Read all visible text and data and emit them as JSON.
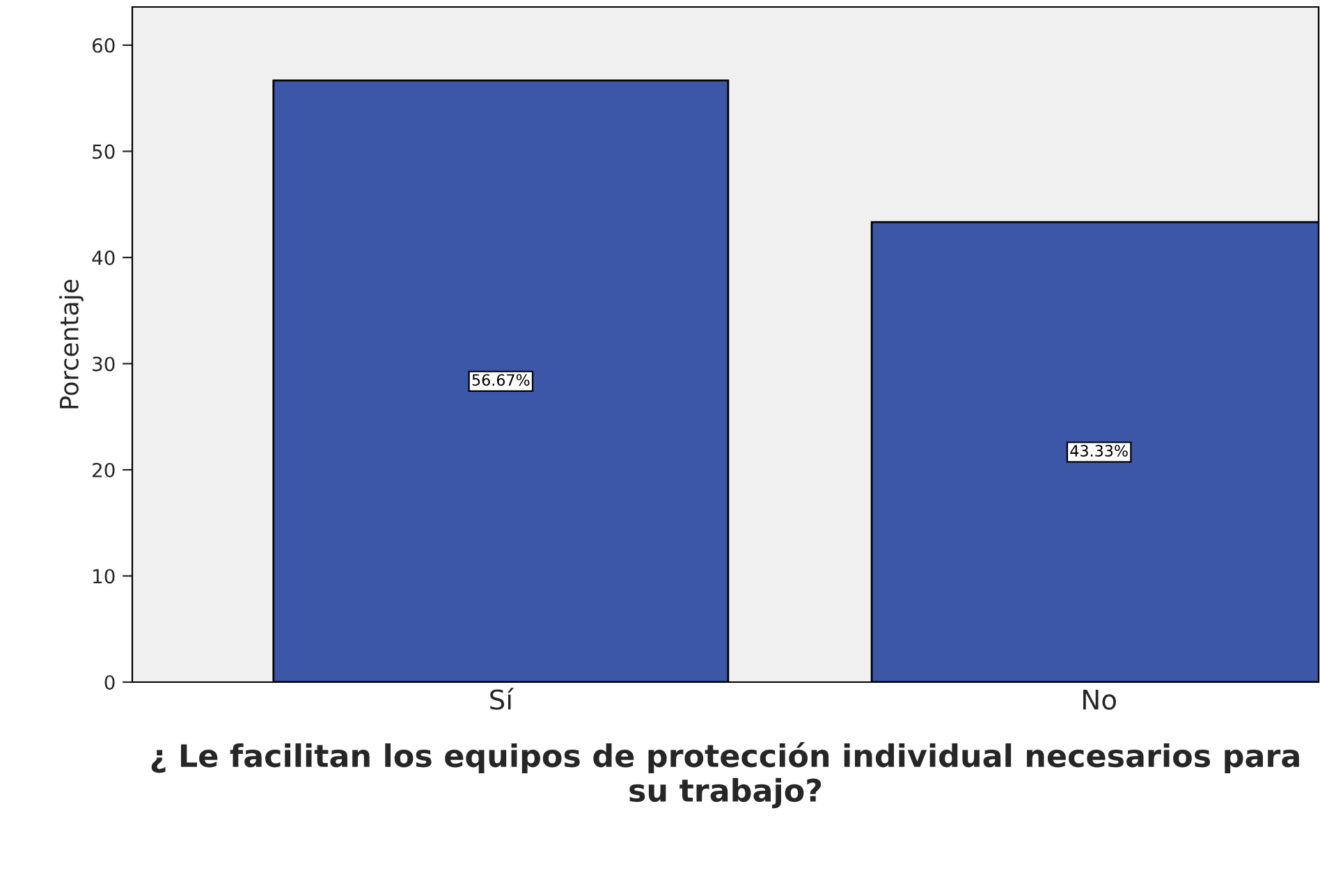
{
  "chart_data": {
    "type": "bar",
    "categories": [
      "Sí",
      "No"
    ],
    "values": [
      56.67,
      43.33
    ],
    "value_labels": [
      "56.67%",
      "43.33%"
    ],
    "color": "#3c56a8",
    "xlabel": "¿ Le facilitan los equipos de protección individual necesarios para su trabajo?",
    "ylabel": "Porcentaje",
    "ylim": [
      0,
      63.6
    ],
    "yticks": [
      0,
      10,
      20,
      30,
      40,
      50,
      60
    ],
    "grid": false,
    "legend": false
  }
}
